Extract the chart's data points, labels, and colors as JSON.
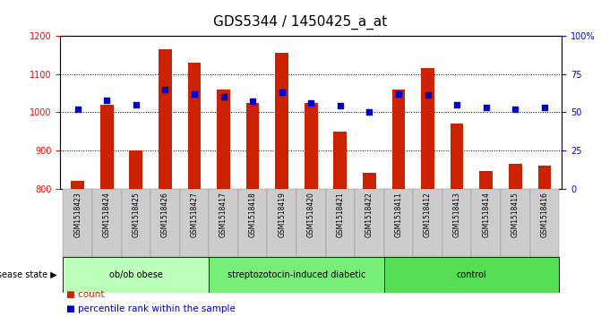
{
  "title": "GDS5344 / 1450425_a_at",
  "samples": [
    "GSM1518423",
    "GSM1518424",
    "GSM1518425",
    "GSM1518426",
    "GSM1518427",
    "GSM1518417",
    "GSM1518418",
    "GSM1518419",
    "GSM1518420",
    "GSM1518421",
    "GSM1518422",
    "GSM1518411",
    "GSM1518412",
    "GSM1518413",
    "GSM1518414",
    "GSM1518415",
    "GSM1518416"
  ],
  "counts": [
    820,
    1020,
    900,
    1165,
    1130,
    1060,
    1025,
    1155,
    1025,
    950,
    840,
    1060,
    1115,
    970,
    845,
    865,
    860
  ],
  "percentiles": [
    52,
    58,
    55,
    65,
    62,
    60,
    57,
    63,
    56,
    54,
    50,
    62,
    61,
    55,
    53,
    52,
    53
  ],
  "groups": [
    {
      "label": "ob/ob obese",
      "start": 0,
      "end": 5,
      "color": "#bbffbb"
    },
    {
      "label": "streptozotocin-induced diabetic",
      "start": 5,
      "end": 11,
      "color": "#77ee77"
    },
    {
      "label": "control",
      "start": 11,
      "end": 17,
      "color": "#55dd55"
    }
  ],
  "ylim_left": [
    800,
    1200
  ],
  "ylim_right": [
    0,
    100
  ],
  "yticks_left": [
    800,
    900,
    1000,
    1100,
    1200
  ],
  "yticks_right": [
    0,
    25,
    50,
    75,
    100
  ],
  "bar_color": "#cc2200",
  "dot_color": "#0000cc",
  "plot_bg": "#ffffff",
  "grid_color": "#000000",
  "title_fontsize": 11,
  "tick_fontsize": 7,
  "label_fontsize": 8,
  "xlim": [
    -0.6,
    16.6
  ]
}
